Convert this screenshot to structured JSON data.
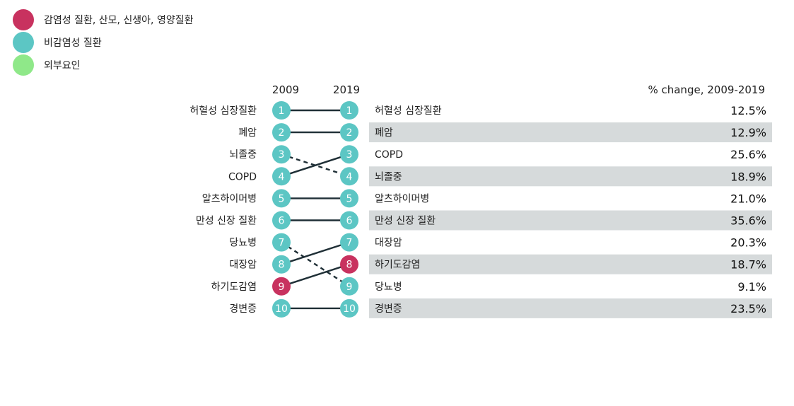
{
  "legend": [
    {
      "label": "감염성 질환, 산모, 신생아, 영양질환",
      "color": "#c8325f"
    },
    {
      "label": "비감염성 질환",
      "color": "#5cc6c4"
    },
    {
      "label": "외부요인",
      "color": "#8fe889"
    }
  ],
  "chart_data": {
    "type": "table",
    "title": "",
    "column_headers": {
      "left": "2009",
      "right": "2019",
      "change": "% change, 2009-2019"
    },
    "category_colors": {
      "infectious": "#c8325f",
      "noncommunicable": "#5cc6c4",
      "external": "#8fe889"
    },
    "rank_2009": [
      {
        "rank": 1,
        "cause": "허혈성 심장질환",
        "category": "noncommunicable"
      },
      {
        "rank": 2,
        "cause": "폐암",
        "category": "noncommunicable"
      },
      {
        "rank": 3,
        "cause": "뇌졸중",
        "category": "noncommunicable"
      },
      {
        "rank": 4,
        "cause": "COPD",
        "category": "noncommunicable"
      },
      {
        "rank": 5,
        "cause": "알츠하이머병",
        "category": "noncommunicable"
      },
      {
        "rank": 6,
        "cause": "만성 신장 질환",
        "category": "noncommunicable"
      },
      {
        "rank": 7,
        "cause": "당뇨병",
        "category": "noncommunicable"
      },
      {
        "rank": 8,
        "cause": "대장암",
        "category": "noncommunicable"
      },
      {
        "rank": 9,
        "cause": "하기도감염",
        "category": "infectious"
      },
      {
        "rank": 10,
        "cause": "경변증",
        "category": "noncommunicable"
      }
    ],
    "rank_2019": [
      {
        "rank": 1,
        "cause": "허혈성 심장질환",
        "category": "noncommunicable",
        "pct_change": "12.5%",
        "from_rank": 1
      },
      {
        "rank": 2,
        "cause": "폐암",
        "category": "noncommunicable",
        "pct_change": "12.9%",
        "from_rank": 2
      },
      {
        "rank": 3,
        "cause": "COPD",
        "category": "noncommunicable",
        "pct_change": "25.6%",
        "from_rank": 4
      },
      {
        "rank": 4,
        "cause": "뇌졸중",
        "category": "noncommunicable",
        "pct_change": "18.9%",
        "from_rank": 3
      },
      {
        "rank": 5,
        "cause": "알츠하이머병",
        "category": "noncommunicable",
        "pct_change": "21.0%",
        "from_rank": 5
      },
      {
        "rank": 6,
        "cause": "만성 신장 질환",
        "category": "noncommunicable",
        "pct_change": "35.6%",
        "from_rank": 6
      },
      {
        "rank": 7,
        "cause": "대장암",
        "category": "noncommunicable",
        "pct_change": "20.3%",
        "from_rank": 8
      },
      {
        "rank": 8,
        "cause": "하기도감염",
        "category": "infectious",
        "pct_change": "18.7%",
        "from_rank": 9
      },
      {
        "rank": 9,
        "cause": "당뇨병",
        "category": "noncommunicable",
        "pct_change": "9.1%",
        "from_rank": 7
      },
      {
        "rank": 10,
        "cause": "경변증",
        "category": "noncommunicable",
        "pct_change": "23.5%",
        "from_rank": 10
      }
    ]
  }
}
